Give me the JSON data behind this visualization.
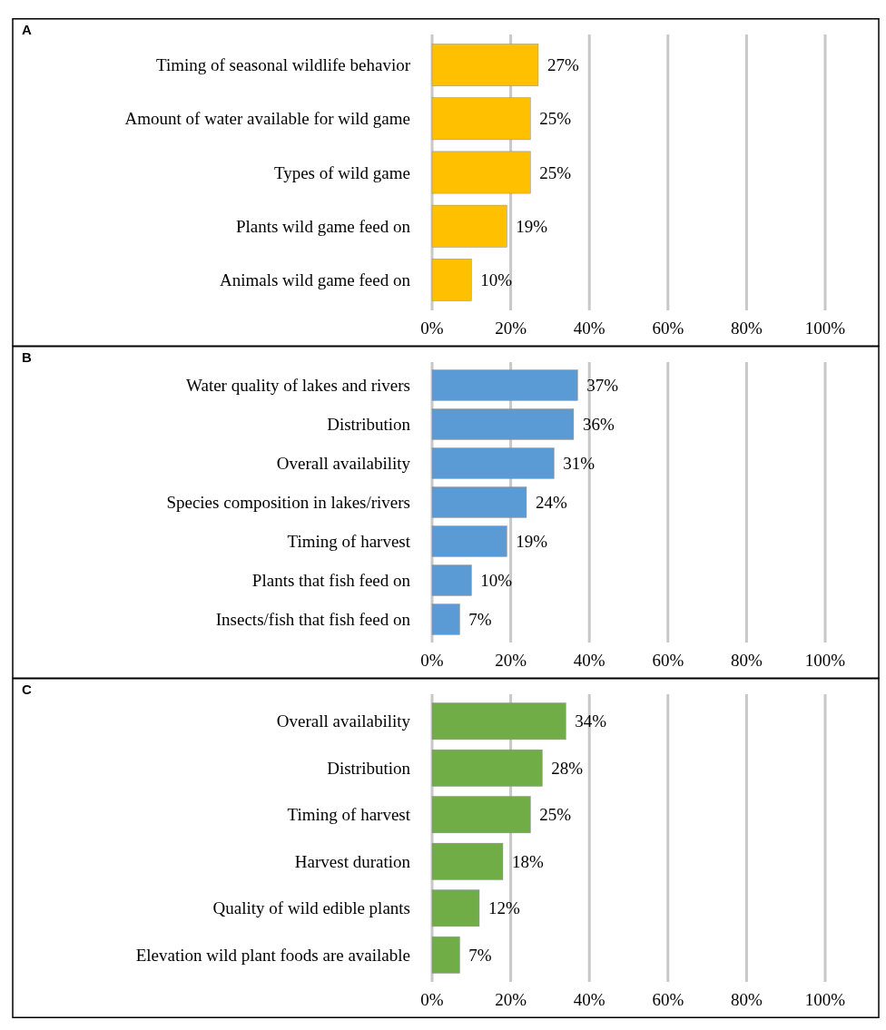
{
  "chart_data": [
    {
      "type": "bar",
      "annotations": [
        "A"
      ],
      "orientation": "horizontal",
      "categories": [
        "Timing of seasonal wildlife behavior",
        "Amount of water available for wild game",
        "Types of wild game",
        "Plants wild game feed on",
        "Animals wild game feed on"
      ],
      "values": [
        27,
        25,
        25,
        19,
        10
      ],
      "value_labels": [
        "27%",
        "25%",
        "25%",
        "19%",
        "10%"
      ],
      "color": "#ffc000",
      "xlim": [
        0,
        100
      ],
      "xticks": [
        {
          "value": 0,
          "label": "0%"
        },
        {
          "value": 20,
          "label": "20%"
        },
        {
          "value": 40,
          "label": "40%"
        },
        {
          "value": 60,
          "label": "60%"
        },
        {
          "value": 80,
          "label": "80%"
        },
        {
          "value": 100,
          "label": "100%"
        }
      ],
      "grid": "x"
    },
    {
      "type": "bar",
      "annotations": [
        "B"
      ],
      "orientation": "horizontal",
      "categories": [
        "Water quality of lakes and rivers",
        "Distribution",
        "Overall availability",
        "Species composition in lakes/rivers",
        "Timing of harvest",
        "Plants that fish feed on",
        "Insects/fish that fish feed on"
      ],
      "values": [
        37,
        36,
        31,
        24,
        19,
        10,
        7
      ],
      "value_labels": [
        "37%",
        "36%",
        "31%",
        "24%",
        "19%",
        "10%",
        "7%"
      ],
      "color": "#5b9bd5",
      "xlim": [
        0,
        100
      ],
      "xticks": [
        {
          "value": 0,
          "label": "0%"
        },
        {
          "value": 20,
          "label": "20%"
        },
        {
          "value": 40,
          "label": "40%"
        },
        {
          "value": 60,
          "label": "60%"
        },
        {
          "value": 80,
          "label": "80%"
        },
        {
          "value": 100,
          "label": "100%"
        }
      ],
      "grid": "x"
    },
    {
      "type": "bar",
      "annotations": [
        "C"
      ],
      "orientation": "horizontal",
      "categories": [
        "Overall availability",
        "Distribution",
        "Timing of harvest",
        "Harvest duration",
        "Quality of wild edible plants",
        "Elevation wild plant foods are available"
      ],
      "values": [
        34,
        28,
        25,
        18,
        12,
        7
      ],
      "value_labels": [
        "34%",
        "28%",
        "25%",
        "18%",
        "12%",
        "7%"
      ],
      "color": "#70ad47",
      "xlim": [
        0,
        100
      ],
      "xticks": [
        {
          "value": 0,
          "label": "0%"
        },
        {
          "value": 20,
          "label": "20%"
        },
        {
          "value": 40,
          "label": "40%"
        },
        {
          "value": 60,
          "label": "60%"
        },
        {
          "value": 80,
          "label": "80%"
        },
        {
          "value": 100,
          "label": "100%"
        }
      ],
      "grid": "x"
    }
  ]
}
